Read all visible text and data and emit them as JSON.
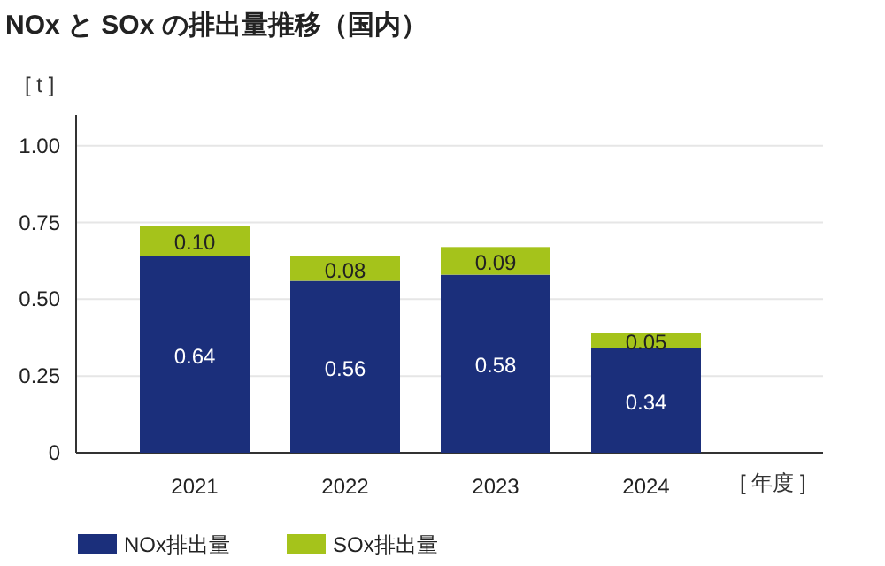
{
  "chart_data": {
    "type": "bar",
    "stacked": true,
    "title": "NOx と SOx の排出量推移（国内）",
    "ylabel": "[ t ]",
    "xlabel": "[ 年度 ]",
    "categories": [
      "2021",
      "2022",
      "2023",
      "2024"
    ],
    "series": [
      {
        "name": "NOx排出量",
        "color": "#1b2f7b",
        "values": [
          0.64,
          0.56,
          0.58,
          0.34
        ],
        "value_labels": [
          "0.64",
          "0.56",
          "0.58",
          "0.34"
        ]
      },
      {
        "name": "SOx排出量",
        "color": "#a5c31b",
        "values": [
          0.1,
          0.08,
          0.09,
          0.05
        ],
        "value_labels": [
          "0.10",
          "0.08",
          "0.09",
          "0.05"
        ]
      }
    ],
    "ylim": [
      0,
      1.1
    ],
    "yticks": [
      0,
      {
        "value": 0.25,
        "label": "0.25"
      },
      {
        "value": 0.5,
        "label": "0.50"
      },
      {
        "value": 0.75,
        "label": "0.75"
      },
      {
        "value": 1,
        "label": "1.00"
      }
    ],
    "grid": "y",
    "legend": "bottom left"
  }
}
